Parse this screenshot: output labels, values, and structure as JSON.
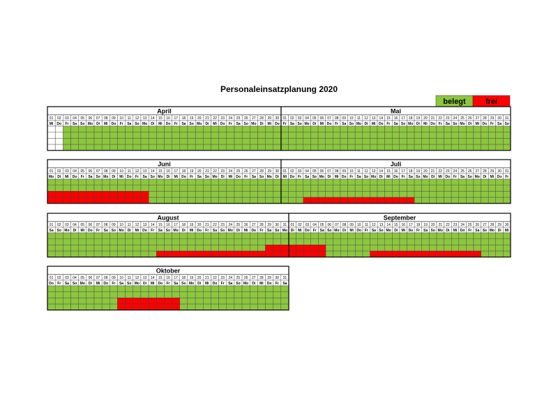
{
  "title": "Personaleinsatzplanung 2020",
  "legend": [
    {
      "label": "belegt",
      "color": "#8dc63f"
    },
    {
      "label": "frei",
      "color": "#ff0000"
    }
  ],
  "blocks": [
    {
      "name": "April",
      "days": [
        "01",
        "02",
        "03",
        "04",
        "05",
        "06",
        "07",
        "08",
        "09",
        "10",
        "11",
        "12",
        "13",
        "14",
        "15",
        "16",
        "17",
        "18",
        "19",
        "20",
        "21",
        "22",
        "23",
        "24",
        "25",
        "26",
        "27",
        "28",
        "29",
        "30"
      ],
      "weekdays": [
        "Mi",
        "Do",
        "Fr",
        "Sa",
        "So",
        "Mo",
        "Di",
        "Mi",
        "Do",
        "Fr",
        "Sa",
        "So",
        "Mo",
        "Di",
        "Mi",
        "Do",
        "Fr",
        "Sa",
        "So",
        "Mo",
        "Di",
        "Mi",
        "Do",
        "Fr",
        "Sa",
        "So",
        "Mo",
        "Di",
        "Mi",
        "Do"
      ],
      "marks": [
        {
          "from": 1,
          "to": 2,
          "rows": [
            0,
            1,
            2,
            3
          ],
          "color": "#ffffff"
        }
      ]
    },
    {
      "name": "Mai",
      "days": [
        "01",
        "02",
        "03",
        "04",
        "05",
        "06",
        "07",
        "08",
        "09",
        "10",
        "11",
        "12",
        "13",
        "14",
        "15",
        "16",
        "17",
        "18",
        "19",
        "20",
        "21",
        "22",
        "23",
        "24",
        "25",
        "26",
        "27",
        "28",
        "29",
        "30",
        "31"
      ],
      "weekdays": [
        "Fr",
        "Sa",
        "So",
        "Mo",
        "Di",
        "Mi",
        "Do",
        "Fr",
        "Sa",
        "So",
        "Mo",
        "Di",
        "Mi",
        "Do",
        "Fr",
        "Sa",
        "So",
        "Mo",
        "Di",
        "Mi",
        "Do",
        "Fr",
        "Sa",
        "So",
        "Mo",
        "Di",
        "Mi",
        "Do",
        "Fr",
        "Sa",
        "So"
      ],
      "marks": []
    },
    {
      "name": "Juni",
      "days": [
        "01",
        "02",
        "03",
        "04",
        "05",
        "06",
        "07",
        "08",
        "09",
        "10",
        "11",
        "12",
        "13",
        "14",
        "15",
        "16",
        "17",
        "18",
        "19",
        "20",
        "21",
        "22",
        "23",
        "24",
        "25",
        "26",
        "27",
        "28",
        "29",
        "30"
      ],
      "weekdays": [
        "Mo",
        "Di",
        "Mi",
        "Do",
        "Fr",
        "Sa",
        "So",
        "Mo",
        "Di",
        "Mi",
        "Do",
        "Fr",
        "Sa",
        "So",
        "Mo",
        "Di",
        "Mi",
        "Do",
        "Fr",
        "Sa",
        "So",
        "Mo",
        "Di",
        "Mi",
        "Do",
        "Fr",
        "Sa",
        "So",
        "Mo",
        "Di"
      ],
      "marks": [
        {
          "from": 1,
          "to": 13,
          "rows": [
            2,
            3
          ],
          "color": "#ff0000"
        }
      ]
    },
    {
      "name": "Juli",
      "days": [
        "01",
        "02",
        "03",
        "04",
        "05",
        "06",
        "07",
        "08",
        "09",
        "10",
        "11",
        "12",
        "13",
        "14",
        "15",
        "16",
        "17",
        "18",
        "19",
        "20",
        "21",
        "22",
        "23",
        "24",
        "25",
        "26",
        "27",
        "28",
        "29",
        "30",
        "31"
      ],
      "weekdays": [
        "Mi",
        "Do",
        "Fr",
        "Sa",
        "So",
        "Mo",
        "Di",
        "Mi",
        "Do",
        "Fr",
        "Sa",
        "So",
        "Mo",
        "Di",
        "Mi",
        "Do",
        "Fr",
        "Sa",
        "So",
        "Mo",
        "Di",
        "Mi",
        "Do",
        "Fr",
        "Sa",
        "So",
        "Mo",
        "Di",
        "Mi",
        "Do",
        "Fr"
      ],
      "marks": [
        {
          "from": 4,
          "to": 18,
          "rows": [
            3
          ],
          "color": "#ff0000"
        }
      ]
    },
    {
      "name": "August",
      "days": [
        "01",
        "02",
        "03",
        "04",
        "05",
        "06",
        "07",
        "08",
        "09",
        "10",
        "11",
        "12",
        "13",
        "14",
        "15",
        "16",
        "17",
        "18",
        "19",
        "20",
        "21",
        "22",
        "23",
        "24",
        "25",
        "26",
        "27",
        "28",
        "29",
        "30",
        "31"
      ],
      "weekdays": [
        "Sa",
        "So",
        "Mo",
        "Di",
        "Mi",
        "Do",
        "Fr",
        "Sa",
        "So",
        "Mo",
        "Di",
        "Mi",
        "Do",
        "Fr",
        "Sa",
        "So",
        "Mo",
        "Di",
        "Mi",
        "Do",
        "Fr",
        "Sa",
        "So",
        "Mo",
        "Di",
        "Mi",
        "Do",
        "Fr",
        "Sa",
        "So",
        "Mo"
      ],
      "marks": [
        {
          "from": 15,
          "to": 28,
          "rows": [
            3
          ],
          "color": "#ff0000"
        },
        {
          "from": 29,
          "to": 31,
          "rows": [
            2,
            3
          ],
          "color": "#ff0000"
        }
      ]
    },
    {
      "name": "September",
      "days": [
        "01",
        "02",
        "03",
        "04",
        "05",
        "06",
        "07",
        "08",
        "09",
        "10",
        "11",
        "12",
        "13",
        "14",
        "15",
        "16",
        "17",
        "18",
        "19",
        "20",
        "21",
        "22",
        "23",
        "24",
        "25",
        "26",
        "27",
        "28",
        "29",
        "30"
      ],
      "weekdays": [
        "Di",
        "Mi",
        "Do",
        "Fr",
        "Sa",
        "So",
        "Mo",
        "Di",
        "Mi",
        "Do",
        "Fr",
        "Sa",
        "So",
        "Mo",
        "Di",
        "Mi",
        "Do",
        "Fr",
        "Sa",
        "So",
        "Mo",
        "Di",
        "Mi",
        "Do",
        "Fr",
        "Sa",
        "So",
        "Mo",
        "Di",
        "Mi"
      ],
      "marks": [
        {
          "from": 1,
          "to": 5,
          "rows": [
            2,
            3
          ],
          "color": "#ff0000"
        },
        {
          "from": 12,
          "to": 26,
          "rows": [
            3
          ],
          "color": "#ff0000"
        }
      ]
    },
    {
      "name": "Oktober",
      "days": [
        "01",
        "02",
        "03",
        "04",
        "05",
        "06",
        "07",
        "08",
        "09",
        "10",
        "11",
        "12",
        "13",
        "14",
        "15",
        "16",
        "17",
        "18",
        "19",
        "20",
        "21",
        "22",
        "23",
        "24",
        "25",
        "26",
        "27",
        "28",
        "29",
        "30",
        "31"
      ],
      "weekdays": [
        "Do",
        "Fr",
        "Sa",
        "So",
        "Mo",
        "Di",
        "Mi",
        "Do",
        "Fr",
        "Sa",
        "So",
        "Mo",
        "Di",
        "Mi",
        "Do",
        "Fr",
        "Sa",
        "So",
        "Mo",
        "Di",
        "Mi",
        "Do",
        "Fr",
        "Sa",
        "So",
        "Mo",
        "Di",
        "Mi",
        "Do",
        "Fr",
        "Sa"
      ],
      "marks": [
        {
          "from": 10,
          "to": 17,
          "rows": [
            2,
            3
          ],
          "color": "#ff0000"
        }
      ]
    }
  ]
}
